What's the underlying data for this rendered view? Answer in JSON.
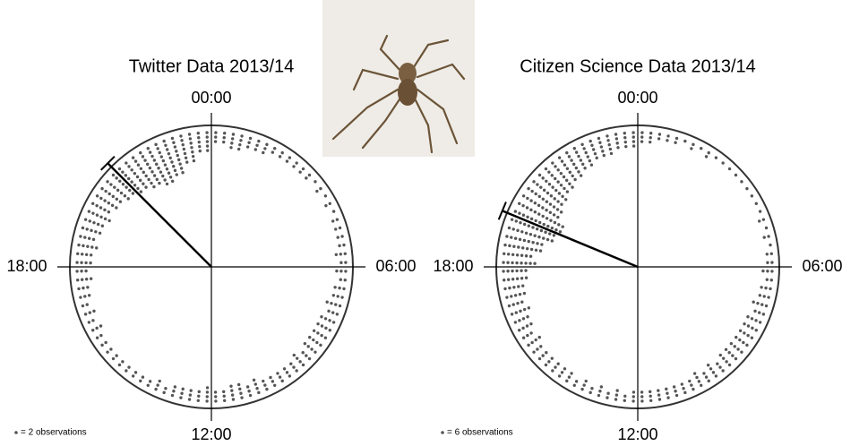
{
  "chart_data": [
    {
      "type": "circular-dot",
      "title": "Twitter Data 2013/14",
      "legend": "= 2 observations",
      "color": "#555555",
      "xlim": [
        0,
        24
      ],
      "xticks": [
        {
          "value": 0,
          "label": "00:00"
        },
        {
          "value": 6,
          "label": "06:00"
        },
        {
          "value": 12,
          "label": "12:00"
        },
        {
          "value": 18,
          "label": "18:00"
        }
      ],
      "values": [
        6,
        8,
        6,
        5,
        4,
        4,
        3,
        3,
        3,
        4,
        4,
        5,
        5,
        6,
        7,
        8,
        8,
        7,
        7,
        6,
        6,
        7,
        8,
        6,
        7,
        6,
        5,
        5,
        4,
        4,
        4,
        4,
        5,
        5,
        6,
        7,
        8,
        9,
        10,
        11,
        12,
        14,
        16,
        18,
        20,
        18,
        14,
        10
      ],
      "mean_hour": 21.0
    },
    {
      "type": "circular-dot",
      "title": "Citizen Science Data 2013/14",
      "legend": "= 6 observations",
      "color": "#555555",
      "xlim": [
        0,
        24
      ],
      "xticks": [
        {
          "value": 0,
          "label": "00:00"
        },
        {
          "value": 6,
          "label": "06:00"
        },
        {
          "value": 12,
          "label": "12:00"
        },
        {
          "value": 18,
          "label": "18:00"
        }
      ],
      "values": [
        6,
        4,
        3,
        3,
        3,
        2,
        2,
        2,
        2,
        3,
        3,
        4,
        5,
        6,
        7,
        8,
        8,
        8,
        7,
        7,
        7,
        6,
        6,
        6,
        5,
        5,
        5,
        5,
        6,
        6,
        6,
        7,
        8,
        9,
        10,
        12,
        15,
        18,
        22,
        24,
        20,
        18,
        16,
        14,
        12,
        10,
        9,
        8
      ],
      "mean_hour": 19.5
    }
  ]
}
